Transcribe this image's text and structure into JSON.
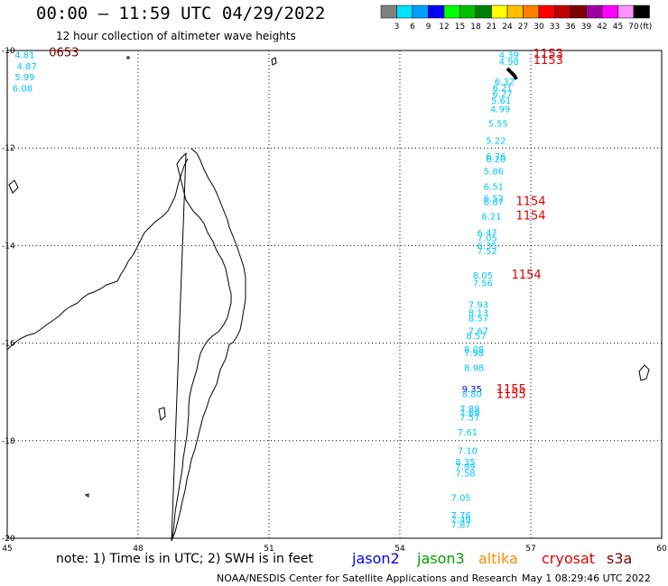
{
  "header": {
    "title": "00:00 – 11:59 UTC 04/29/2022",
    "subtitle": "12 hour collection of altimeter wave heights"
  },
  "legend": {
    "unit": "(ft)",
    "bins": [
      {
        "label": "3",
        "color": "#808080"
      },
      {
        "label": "6",
        "color": "#00e0ff"
      },
      {
        "label": "9",
        "color": "#00a0ff"
      },
      {
        "label": "12",
        "color": "#0000ff"
      },
      {
        "label": "15",
        "color": "#00ff00"
      },
      {
        "label": "18",
        "color": "#00c000"
      },
      {
        "label": "21",
        "color": "#008000"
      },
      {
        "label": "24",
        "color": "#ffff00"
      },
      {
        "label": "27",
        "color": "#ffc000"
      },
      {
        "label": "30",
        "color": "#ff8000"
      },
      {
        "label": "33",
        "color": "#ff0000"
      },
      {
        "label": "36",
        "color": "#c00000"
      },
      {
        "label": "39",
        "color": "#800000"
      },
      {
        "label": "42",
        "color": "#a000a0"
      },
      {
        "label": "45",
        "color": "#ff00ff"
      },
      {
        "label": "70",
        "color": "#ff90ff"
      },
      {
        "label": "",
        "color": "#000000"
      }
    ]
  },
  "axes": {
    "lon_ticks": [
      "45",
      "48",
      "51",
      "54",
      "57",
      "60"
    ],
    "lat_ticks": [
      "-10",
      "-12",
      "-14",
      "-16",
      "-18",
      "-20"
    ]
  },
  "observations": [
    {
      "lon": 45.4,
      "lat": -10.08,
      "text": "4.81",
      "color": "#00c8ff"
    },
    {
      "lon": 45.45,
      "lat": -10.31,
      "text": "4.87",
      "color": "#00c8ff"
    },
    {
      "lon": 45.4,
      "lat": -10.54,
      "text": "5.99",
      "color": "#00c8ff"
    },
    {
      "lon": 45.35,
      "lat": -10.77,
      "text": "6.08",
      "color": "#00c8ff"
    },
    {
      "lon": 46.3,
      "lat": -10.05,
      "text": "0653",
      "color": "#800000"
    },
    {
      "lon": 56.5,
      "lat": -10.08,
      "text": "4.39",
      "color": "#00c8ff"
    },
    {
      "lon": 56.5,
      "lat": -10.22,
      "text": "4.98",
      "color": "#00c8ff"
    },
    {
      "lon": 57.4,
      "lat": -10.07,
      "text": "1153",
      "color": "#e00000"
    },
    {
      "lon": 57.4,
      "lat": -10.2,
      "text": "1153",
      "color": "#e00000"
    },
    {
      "lon": 56.4,
      "lat": -10.63,
      "text": "6.32",
      "color": "#00c8ff"
    },
    {
      "lon": 56.35,
      "lat": -10.76,
      "text": "6.21",
      "color": "#00c8ff"
    },
    {
      "lon": 56.35,
      "lat": -10.88,
      "text": "6.27",
      "color": "#00c8ff"
    },
    {
      "lon": 56.32,
      "lat": -11.02,
      "text": "5.61",
      "color": "#00c8ff"
    },
    {
      "lon": 56.3,
      "lat": -11.19,
      "text": "4.99",
      "color": "#00c8ff"
    },
    {
      "lon": 56.25,
      "lat": -11.49,
      "text": "5.55",
      "color": "#00c8ff"
    },
    {
      "lon": 56.2,
      "lat": -11.84,
      "text": "5.22",
      "color": "#00c8ff"
    },
    {
      "lon": 56.2,
      "lat": -12.16,
      "text": "6.76",
      "color": "#00c8ff"
    },
    {
      "lon": 56.2,
      "lat": -12.22,
      "text": "6.20",
      "color": "#00c8ff"
    },
    {
      "lon": 56.15,
      "lat": -12.47,
      "text": "5.86",
      "color": "#00c8ff"
    },
    {
      "lon": 56.15,
      "lat": -12.78,
      "text": "6.51",
      "color": "#00c8ff"
    },
    {
      "lon": 56.15,
      "lat": -13.02,
      "text": "6.52",
      "color": "#00c8ff"
    },
    {
      "lon": 56.15,
      "lat": -13.1,
      "text": "6.67",
      "color": "#00c8ff"
    },
    {
      "lon": 57.0,
      "lat": -13.1,
      "text": "1154",
      "color": "#e00000"
    },
    {
      "lon": 56.1,
      "lat": -13.39,
      "text": "6.21",
      "color": "#00c8ff"
    },
    {
      "lon": 57.0,
      "lat": -13.39,
      "text": "1154",
      "color": "#e00000"
    },
    {
      "lon": 56.0,
      "lat": -13.72,
      "text": "6.47",
      "color": "#00c8ff"
    },
    {
      "lon": 56.0,
      "lat": -13.84,
      "text": "7.05",
      "color": "#00c8ff"
    },
    {
      "lon": 56.0,
      "lat": -13.99,
      "text": "6.35",
      "color": "#00c8ff"
    },
    {
      "lon": 56.0,
      "lat": -14.1,
      "text": "7.52",
      "color": "#00c8ff"
    },
    {
      "lon": 55.9,
      "lat": -14.6,
      "text": "8.05",
      "color": "#00c8ff"
    },
    {
      "lon": 55.9,
      "lat": -14.76,
      "text": "7.56",
      "color": "#00c8ff"
    },
    {
      "lon": 56.9,
      "lat": -14.6,
      "text": "1154",
      "color": "#e00000"
    },
    {
      "lon": 55.8,
      "lat": -15.2,
      "text": "7.93",
      "color": "#00c8ff"
    },
    {
      "lon": 55.8,
      "lat": -15.37,
      "text": "8.13",
      "color": "#00c8ff"
    },
    {
      "lon": 55.8,
      "lat": -15.48,
      "text": "8.57",
      "color": "#00c8ff"
    },
    {
      "lon": 55.8,
      "lat": -15.74,
      "text": "7.67",
      "color": "#00c8ff"
    },
    {
      "lon": 55.75,
      "lat": -15.84,
      "text": "8.57",
      "color": "#00c8ff"
    },
    {
      "lon": 55.7,
      "lat": -16.12,
      "text": "8.08",
      "color": "#00c8ff"
    },
    {
      "lon": 55.7,
      "lat": -16.19,
      "text": "7.98",
      "color": "#00c8ff"
    },
    {
      "lon": 55.7,
      "lat": -16.5,
      "text": "8.98",
      "color": "#00c8ff"
    },
    {
      "lon": 55.65,
      "lat": -16.93,
      "text": "9.35",
      "color": "#0000ff"
    },
    {
      "lon": 55.65,
      "lat": -17.03,
      "text": "8.80",
      "color": "#00c8ff"
    },
    {
      "lon": 56.55,
      "lat": -16.95,
      "text": "1155",
      "color": "#e00000"
    },
    {
      "lon": 56.55,
      "lat": -17.05,
      "text": "1155",
      "color": "#e00000"
    },
    {
      "lon": 55.6,
      "lat": -17.34,
      "text": "7.89",
      "color": "#00c8ff"
    },
    {
      "lon": 55.6,
      "lat": -17.42,
      "text": "7.69",
      "color": "#00c8ff"
    },
    {
      "lon": 55.6,
      "lat": -17.51,
      "text": "7.57",
      "color": "#00c8ff"
    },
    {
      "lon": 55.55,
      "lat": -17.82,
      "text": "7.61",
      "color": "#00c8ff"
    },
    {
      "lon": 55.55,
      "lat": -18.2,
      "text": "7.10",
      "color": "#00c8ff"
    },
    {
      "lon": 55.5,
      "lat": -18.43,
      "text": "8.35",
      "color": "#00c8ff"
    },
    {
      "lon": 55.5,
      "lat": -18.52,
      "text": "7.99",
      "color": "#00c8ff"
    },
    {
      "lon": 55.5,
      "lat": -18.66,
      "text": "7.58",
      "color": "#00c8ff"
    },
    {
      "lon": 55.4,
      "lat": -19.16,
      "text": "7.05",
      "color": "#00c8ff"
    },
    {
      "lon": 55.4,
      "lat": -19.52,
      "text": "7.76",
      "color": "#00c8ff"
    },
    {
      "lon": 55.4,
      "lat": -19.61,
      "text": "7.49",
      "color": "#00c8ff"
    },
    {
      "lon": 55.4,
      "lat": -19.71,
      "text": "7.87",
      "color": "#00c8ff"
    }
  ],
  "footer": {
    "note": "note:  1) Time is in UTC;  2) SWH is in feet",
    "satellites": [
      {
        "name": "jason2",
        "color": "#0000ff"
      },
      {
        "name": "jason3",
        "color": "#00a000"
      },
      {
        "name": "altika",
        "color": "#ff8c00"
      },
      {
        "name": "cryosat",
        "color": "#e00000"
      },
      {
        "name": "s3a",
        "color": "#800000"
      }
    ],
    "credit": "NOAA/NESDIS Center for Satellite Applications and Research",
    "generated": "May  1 08:29:46 UTC 2022"
  }
}
